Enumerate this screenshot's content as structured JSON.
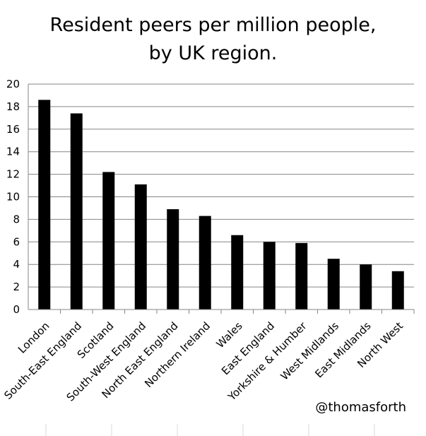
{
  "title_line1": "Resident peers per million people,",
  "title_line2": "by UK region.",
  "credit": "@thomasforth",
  "colors": {
    "bar": "#000000",
    "grid": "#868686",
    "axis": "#868686",
    "text": "#000000"
  },
  "chart_data": {
    "type": "bar",
    "title": "Resident peers per million people, by UK region.",
    "xlabel": "",
    "ylabel": "",
    "ylim": [
      0,
      20
    ],
    "yticks": [
      0,
      2,
      4,
      6,
      8,
      10,
      12,
      14,
      16,
      18,
      20
    ],
    "grid": true,
    "legend": "none",
    "categories": [
      "London",
      "South-East England",
      "Scotland",
      "South-West England",
      "North East England",
      "Northern Ireland",
      "Wales",
      "East England",
      "Yorkshire & Humber",
      "West Midlands",
      "East Midlands",
      "North West"
    ],
    "values": [
      18.6,
      17.4,
      12.2,
      11.1,
      8.9,
      8.3,
      6.6,
      6.0,
      5.9,
      4.5,
      4.0,
      3.4
    ]
  }
}
